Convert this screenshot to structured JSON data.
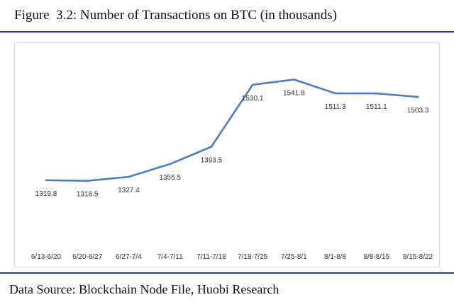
{
  "figure": {
    "title": "Figure  3.2: Number of Transactions on BTC (in thousands)",
    "source": "Data Source: Blockchain Node File, Huobi Research"
  },
  "colors": {
    "line": "#4f7bc4",
    "rule": "#2b3f8f"
  },
  "chart_data": {
    "type": "line",
    "title": "Number of Transactions on BTC (in thousands)",
    "xlabel": "",
    "ylabel": "",
    "categories": [
      "6/13-6/20",
      "6/20-6/27",
      "6/27-7/4",
      "7/4-7/11",
      "7/11-7/18",
      "7/18-7/25",
      "7/25-8/1",
      "8/1-8/8",
      "8/8-8/15",
      "8/15-8/22"
    ],
    "series": [
      {
        "values": [
          1319.8,
          1318.5,
          1327.4,
          1355.5,
          1393.5,
          1530.1,
          1541.8,
          1511.3,
          1511.1,
          1503.3
        ],
        "labels": [
          "1319.8",
          "1318.5",
          "1327.4",
          "1355.5",
          "1393.5",
          "1530.1",
          "1541.8",
          "1511.3",
          "1511.1",
          "1503.3"
        ]
      }
    ],
    "ylim": [
      1170,
      1600
    ],
    "grid": false,
    "legend": "none",
    "data_labels": true
  }
}
